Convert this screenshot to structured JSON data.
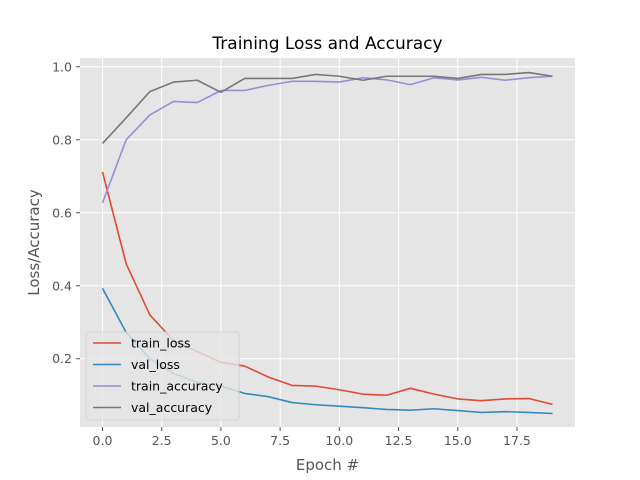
{
  "chart_data": {
    "type": "line",
    "title": "Training Loss and Accuracy",
    "xlabel": "Epoch #",
    "ylabel": "Loss/Accuracy",
    "xlim": [
      -0.95,
      19.95
    ],
    "ylim": [
      0.013,
      1.024
    ],
    "xticks": [
      0,
      2.5,
      5,
      7.5,
      10,
      12.5,
      15,
      17.5
    ],
    "xtick_labels": [
      "0.0",
      "2.5",
      "5.0",
      "7.5",
      "10.0",
      "12.5",
      "15.0",
      "17.5"
    ],
    "yticks": [
      0.2,
      0.4,
      0.6,
      0.8,
      1.0
    ],
    "ytick_labels": [
      "0.2",
      "0.4",
      "0.6",
      "0.8",
      "1.0"
    ],
    "grid": true,
    "legend_position": "lower-left",
    "x": [
      0,
      1,
      2,
      3,
      4,
      5,
      6,
      7,
      8,
      9,
      10,
      11,
      12,
      13,
      14,
      15,
      16,
      17,
      18,
      19
    ],
    "series": [
      {
        "name": "train_loss",
        "color": "#e24a33",
        "values": [
          0.712,
          0.46,
          0.32,
          0.25,
          0.22,
          0.19,
          0.18,
          0.15,
          0.127,
          0.125,
          0.115,
          0.103,
          0.1,
          0.119,
          0.103,
          0.09,
          0.085,
          0.09,
          0.091,
          0.075
        ]
      },
      {
        "name": "val_loss",
        "color": "#348abd",
        "values": [
          0.393,
          0.272,
          0.2,
          0.16,
          0.135,
          0.125,
          0.105,
          0.096,
          0.08,
          0.074,
          0.07,
          0.066,
          0.061,
          0.059,
          0.063,
          0.058,
          0.053,
          0.055,
          0.053,
          0.05
        ]
      },
      {
        "name": "train_accuracy",
        "color": "#988ed5",
        "values": [
          0.627,
          0.8,
          0.868,
          0.905,
          0.902,
          0.935,
          0.935,
          0.949,
          0.96,
          0.96,
          0.958,
          0.97,
          0.964,
          0.951,
          0.97,
          0.964,
          0.971,
          0.963,
          0.97,
          0.974
        ]
      },
      {
        "name": "val_accuracy",
        "color": "#777777",
        "values": [
          0.79,
          0.86,
          0.932,
          0.958,
          0.963,
          0.93,
          0.968,
          0.968,
          0.968,
          0.979,
          0.974,
          0.963,
          0.974,
          0.974,
          0.974,
          0.968,
          0.979,
          0.979,
          0.984,
          0.974
        ]
      }
    ]
  }
}
